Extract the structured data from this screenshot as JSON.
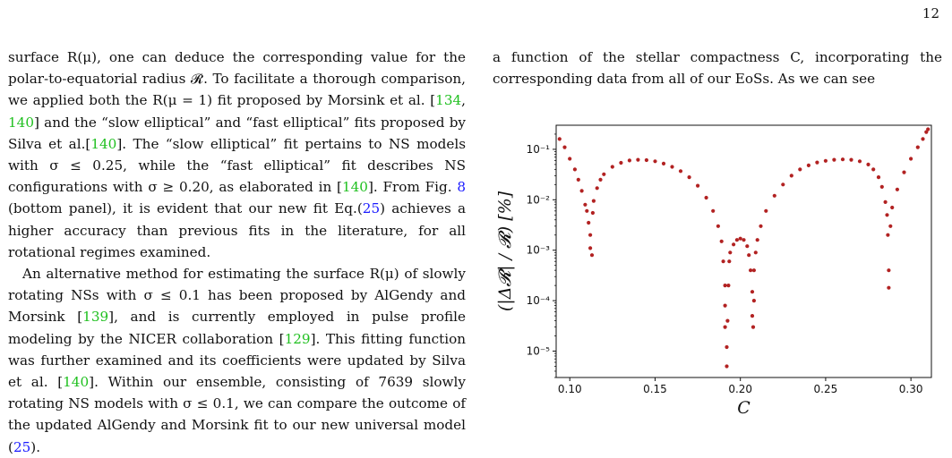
{
  "page_number": "12",
  "left_column": {
    "p1": [
      {
        "t": "surface R(μ), one can deduce the corresponding value for the polar-to-equatorial radius 𝓡. To facilitate a thorough comparison, we applied both the R(μ = 1) fit proposed by Morsink et al. ["
      },
      {
        "t": "134",
        "c": "cite"
      },
      {
        "t": ", "
      },
      {
        "t": "140",
        "c": "cite"
      },
      {
        "t": "] and the “slow elliptical” and “fast elliptical” fits proposed by Silva et al.["
      },
      {
        "t": "140",
        "c": "cite"
      },
      {
        "t": "]. The “slow elliptical” fit pertains to NS models with σ ≤ 0.25, while the “fast elliptical” fit describes NS configurations with σ ≥ 0.20, as elaborated in ["
      },
      {
        "t": "140",
        "c": "cite"
      },
      {
        "t": "]. From Fig. "
      },
      {
        "t": "8",
        "c": "ref"
      },
      {
        "t": " (bottom panel), it is evident that our new fit Eq.("
      },
      {
        "t": "25",
        "c": "ref"
      },
      {
        "t": ") achieves a higher accuracy than previous fits in the literature, for all rotational regimes examined."
      }
    ],
    "p2": [
      {
        "t": "An alternative method for estimating the surface R(μ) of slowly rotating NSs with σ ≤ 0.1 has been proposed by AlGendy and Morsink ["
      },
      {
        "t": "139",
        "c": "cite"
      },
      {
        "t": "], and is currently employed in pulse profile modeling by the NICER collaboration ["
      },
      {
        "t": "129",
        "c": "cite"
      },
      {
        "t": "]. This fitting function was further examined and its coefficients were updated by Silva et al. ["
      },
      {
        "t": "140",
        "c": "cite"
      },
      {
        "t": "]. Within our ensemble, consisting of 7639 slowly rotating NS models with σ ≤ 0.1, we can compare the outcome of the updated AlGendy and Morsink fit to our new universal model ("
      },
      {
        "t": "25",
        "c": "ref"
      },
      {
        "t": ")."
      }
    ]
  },
  "right_column": {
    "intro": "a function of the stellar compactness C, incorporating the corresponding data from all of our EoSs. As we can see"
  },
  "chart_data": {
    "type": "scatter",
    "xlabel": "C",
    "ylabel": "(|Δ𝓡| / 𝓡) [%]",
    "xlim": [
      0.092,
      0.312
    ],
    "ylim": [
      3e-06,
      0.3
    ],
    "yscale": "log",
    "x_ticks": [
      "0.10",
      "0.15",
      "0.20",
      "0.25",
      "0.30"
    ],
    "x_tick_values": [
      0.1,
      0.15,
      0.2,
      0.25,
      0.3
    ],
    "y_ticks": [
      "10⁻¹",
      "10⁻²",
      "10⁻³",
      "10⁻⁴",
      "10⁻⁵"
    ],
    "y_tick_values": [
      0.1,
      0.01,
      0.001,
      0.0001,
      1e-05
    ],
    "marker_color": "#b22222",
    "points": [
      [
        0.094,
        0.16
      ],
      [
        0.097,
        0.11
      ],
      [
        0.1,
        0.065
      ],
      [
        0.103,
        0.04
      ],
      [
        0.105,
        0.025
      ],
      [
        0.107,
        0.015
      ],
      [
        0.109,
        0.008
      ],
      [
        0.11,
        0.006
      ],
      [
        0.111,
        0.0035
      ],
      [
        0.112,
        0.002
      ],
      [
        0.112,
        0.0011
      ],
      [
        0.113,
        0.0008
      ],
      [
        0.1135,
        0.0055
      ],
      [
        0.114,
        0.0095
      ],
      [
        0.116,
        0.017
      ],
      [
        0.118,
        0.025
      ],
      [
        0.12,
        0.032
      ],
      [
        0.125,
        0.045
      ],
      [
        0.13,
        0.054
      ],
      [
        0.135,
        0.06
      ],
      [
        0.14,
        0.062
      ],
      [
        0.145,
        0.061
      ],
      [
        0.15,
        0.058
      ],
      [
        0.155,
        0.052
      ],
      [
        0.16,
        0.045
      ],
      [
        0.165,
        0.037
      ],
      [
        0.17,
        0.028
      ],
      [
        0.175,
        0.019
      ],
      [
        0.18,
        0.011
      ],
      [
        0.184,
        0.006
      ],
      [
        0.187,
        0.003
      ],
      [
        0.189,
        0.0015
      ],
      [
        0.19,
        0.0006
      ],
      [
        0.191,
        0.0002
      ],
      [
        0.191,
        8e-05
      ],
      [
        0.191,
        3e-05
      ],
      [
        0.192,
        1.2e-05
      ],
      [
        0.192,
        5e-06
      ],
      [
        0.1925,
        4e-05
      ],
      [
        0.193,
        0.0002
      ],
      [
        0.1935,
        0.0006
      ],
      [
        0.194,
        0.0009
      ],
      [
        0.196,
        0.0013
      ],
      [
        0.198,
        0.0016
      ],
      [
        0.2,
        0.0017
      ],
      [
        0.202,
        0.0016
      ],
      [
        0.204,
        0.0012
      ],
      [
        0.205,
        0.0008
      ],
      [
        0.206,
        0.0004
      ],
      [
        0.207,
        0.00015
      ],
      [
        0.207,
        5e-05
      ],
      [
        0.2075,
        3e-05
      ],
      [
        0.208,
        0.0001
      ],
      [
        0.208,
        0.0004
      ],
      [
        0.209,
        0.0009
      ],
      [
        0.21,
        0.0016
      ],
      [
        0.212,
        0.003
      ],
      [
        0.215,
        0.006
      ],
      [
        0.22,
        0.012
      ],
      [
        0.225,
        0.02
      ],
      [
        0.23,
        0.03
      ],
      [
        0.235,
        0.04
      ],
      [
        0.24,
        0.048
      ],
      [
        0.245,
        0.055
      ],
      [
        0.25,
        0.059
      ],
      [
        0.255,
        0.062
      ],
      [
        0.26,
        0.063
      ],
      [
        0.265,
        0.062
      ],
      [
        0.27,
        0.058
      ],
      [
        0.275,
        0.05
      ],
      [
        0.278,
        0.04
      ],
      [
        0.281,
        0.028
      ],
      [
        0.283,
        0.018
      ],
      [
        0.285,
        0.009
      ],
      [
        0.286,
        0.005
      ],
      [
        0.2865,
        0.002
      ],
      [
        0.287,
        0.0004
      ],
      [
        0.287,
        0.00018
      ],
      [
        0.288,
        0.003
      ],
      [
        0.289,
        0.007
      ],
      [
        0.292,
        0.016
      ],
      [
        0.296,
        0.035
      ],
      [
        0.3,
        0.065
      ],
      [
        0.304,
        0.11
      ],
      [
        0.307,
        0.16
      ],
      [
        0.309,
        0.22
      ],
      [
        0.31,
        0.25
      ]
    ]
  }
}
